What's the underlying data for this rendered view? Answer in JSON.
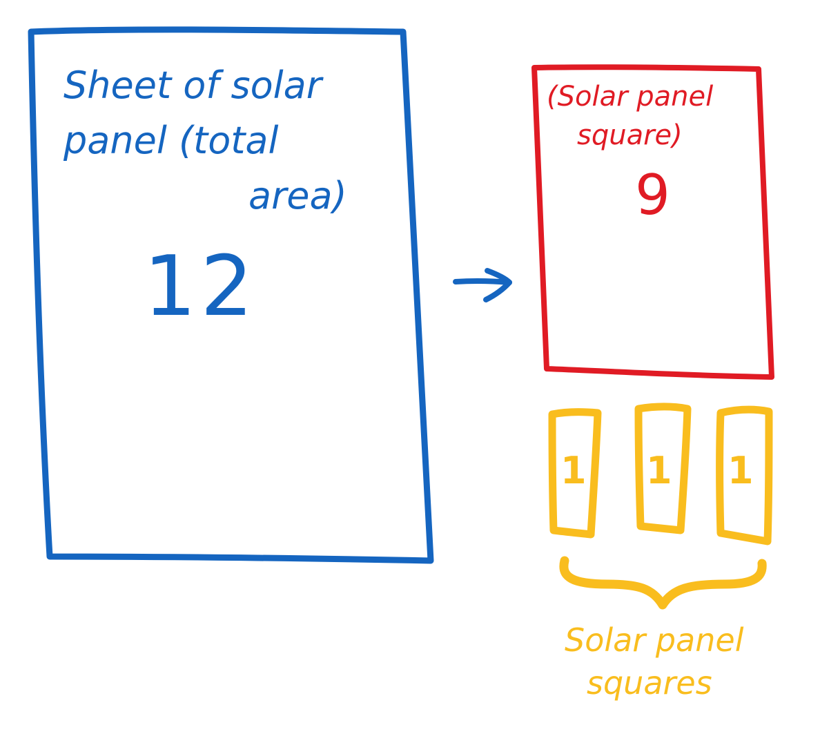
{
  "colors": {
    "sheet": "#1565C0",
    "square": "#E01B24",
    "small_squares": "#F9BD1E"
  },
  "sheet": {
    "label_line1": "Sheet of solar",
    "label_line2": "panel (total",
    "label_line3": "area)",
    "value": "12"
  },
  "square": {
    "label_line1": "(Solar panel",
    "label_line2": "square)",
    "value": "9"
  },
  "small_squares": {
    "values": [
      "1",
      "1",
      "1"
    ],
    "label_line1": "Solar panel",
    "label_line2": "squares"
  }
}
